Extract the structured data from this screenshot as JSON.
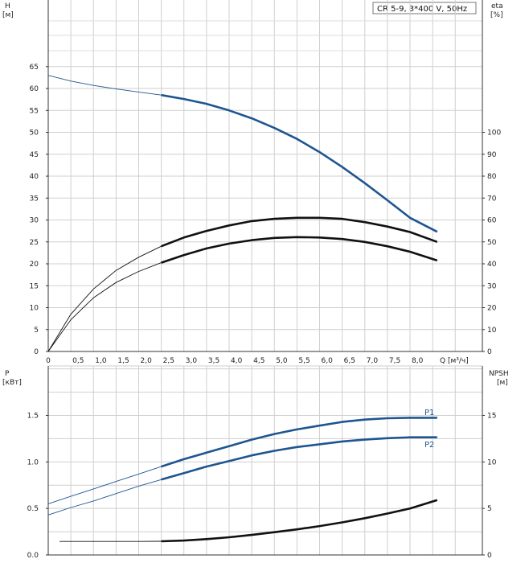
{
  "chart_data": [
    {
      "type": "line",
      "title": "CR 5-9, 3*400 V, 50Hz",
      "ylabel": "H",
      "yunit": "[м]",
      "y2label": "eta",
      "y2unit": "[%]",
      "xlabel": "Q [м³/ч]",
      "xlim": [
        0,
        9.6
      ],
      "ylim": [
        0,
        65
      ],
      "y2lim": [
        0,
        100
      ],
      "x_ticks": [
        "0",
        "0,5",
        "1,0",
        "1,5",
        "2,0",
        "2,5",
        "3,0",
        "3,5",
        "4,0",
        "4,5",
        "5,0",
        "5,5",
        "6,0",
        "6,5",
        "7,0",
        "7,5",
        "8,0",
        "Q [м³/ч]"
      ],
      "y_ticks": [
        "0",
        "5",
        "10",
        "15",
        "20",
        "25",
        "30",
        "35",
        "40",
        "45",
        "50",
        "55",
        "60",
        "65"
      ],
      "y2_ticks": [
        "0",
        "10",
        "20",
        "30",
        "40",
        "50",
        "60",
        "70",
        "80",
        "90",
        "100"
      ],
      "grid": true,
      "series": [
        {
          "color": "#1f5590",
          "axis": "left",
          "x": [
            0,
            0.5,
            1,
            1.5,
            2,
            2.5,
            3,
            3.5,
            4,
            4.5,
            5,
            5.5,
            6,
            6.5,
            7,
            7.5,
            8,
            8.6
          ],
          "values": [
            63,
            61.7,
            60.7,
            59.9,
            59.2,
            58.5,
            57.6,
            56.5,
            55.0,
            53.2,
            51.0,
            48.5,
            45.5,
            42.1,
            38.4,
            34.5,
            30.5,
            27.3
          ]
        },
        {
          "color": "#111111",
          "axis": "right",
          "x": [
            0,
            0.5,
            1,
            1.5,
            2,
            2.5,
            3,
            3.5,
            4,
            4.5,
            5,
            5.5,
            6,
            6.5,
            7,
            7.5,
            8,
            8.6
          ],
          "values": [
            0,
            17,
            28.5,
            37,
            43,
            48,
            52,
            55,
            57.5,
            59.5,
            60.5,
            61,
            61,
            60.5,
            59,
            57,
            54.5,
            50
          ]
        },
        {
          "color": "#111111",
          "axis": "right",
          "x": [
            0,
            0.5,
            1,
            1.5,
            2,
            2.5,
            3,
            3.5,
            4,
            4.5,
            5,
            5.5,
            6,
            6.5,
            7,
            7.5,
            8,
            8.6
          ],
          "values": [
            0,
            14.5,
            24.5,
            31.5,
            36.5,
            40.5,
            44,
            47,
            49.2,
            50.8,
            51.8,
            52.2,
            52,
            51.3,
            50,
            48,
            45.5,
            41.5
          ]
        }
      ]
    },
    {
      "type": "line",
      "ylabel": "P",
      "yunit": "[кВт]",
      "y2label": "NPSH",
      "y2unit": "[м]",
      "xlim": [
        0,
        9.6
      ],
      "ylim": [
        0,
        1.8
      ],
      "y2lim": [
        0,
        18
      ],
      "y_ticks": [
        "0.0",
        "0.5",
        "1.0",
        "1.5"
      ],
      "y2_ticks": [
        "0",
        "5",
        "10",
        "15"
      ],
      "grid": true,
      "series": [
        {
          "name": "P1",
          "color": "#1f5590",
          "axis": "left",
          "x": [
            0,
            0.5,
            1,
            1.5,
            2,
            2.5,
            3,
            3.5,
            4,
            4.5,
            5,
            5.5,
            6,
            6.5,
            7,
            7.5,
            8,
            8.6
          ],
          "values": [
            0.55,
            0.63,
            0.71,
            0.79,
            0.87,
            0.95,
            1.03,
            1.1,
            1.17,
            1.24,
            1.3,
            1.35,
            1.39,
            1.43,
            1.455,
            1.47,
            1.475,
            1.475
          ]
        },
        {
          "name": "P2",
          "color": "#1f5590",
          "axis": "left",
          "x": [
            0,
            0.5,
            1,
            1.5,
            2,
            2.5,
            3,
            3.5,
            4,
            4.5,
            5,
            5.5,
            6,
            6.5,
            7,
            7.5,
            8,
            8.6
          ],
          "values": [
            0.43,
            0.51,
            0.58,
            0.66,
            0.74,
            0.81,
            0.88,
            0.95,
            1.01,
            1.07,
            1.12,
            1.16,
            1.19,
            1.22,
            1.24,
            1.255,
            1.265,
            1.265
          ]
        },
        {
          "color": "#111111",
          "axis": "right",
          "x": [
            0.25,
            1,
            2,
            2.5,
            3,
            3.5,
            4,
            4.5,
            5,
            5.5,
            6,
            6.5,
            7,
            7.5,
            8,
            8.6
          ],
          "values": [
            1.45,
            1.45,
            1.45,
            1.47,
            1.55,
            1.7,
            1.9,
            2.15,
            2.45,
            2.75,
            3.1,
            3.5,
            3.95,
            4.45,
            5.0,
            5.9
          ]
        }
      ]
    }
  ]
}
